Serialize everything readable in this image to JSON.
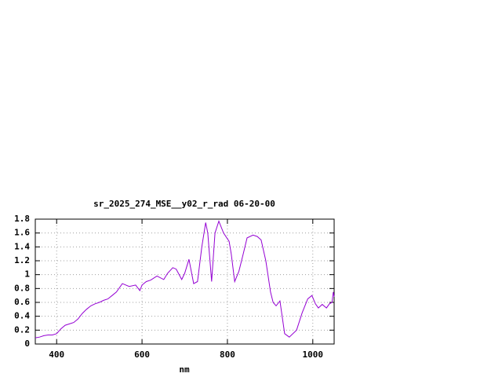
{
  "chart_data": {
    "type": "line",
    "title": "sr_2025_274_MSE__y02_r_rad 06-20-00",
    "x_label": "nm",
    "xlim": [
      350,
      1050
    ],
    "xticks": [
      400,
      600,
      800,
      1000
    ],
    "ylim": [
      0,
      1.8
    ],
    "yticks": [
      0,
      0.2,
      0.4,
      0.6,
      0.8,
      1,
      1.2,
      1.4,
      1.6,
      1.8
    ],
    "grid": true,
    "series": [
      {
        "color": "#9400d3",
        "x": [
          350,
          360,
          370,
          380,
          390,
          400,
          410,
          420,
          430,
          440,
          450,
          460,
          470,
          480,
          490,
          500,
          510,
          520,
          530,
          540,
          554,
          570,
          585,
          595,
          600,
          610,
          620,
          635,
          651,
          660,
          672,
          680,
          693,
          700,
          710,
          721,
          730,
          740,
          749,
          754,
          763,
          771,
          780,
          791,
          804,
          809,
          817,
          827,
          837,
          846,
          860,
          870,
          879,
          890,
          901,
          907,
          914,
          923,
          934,
          945,
          962,
          975,
          988,
          998,
          1006,
          1013,
          1022,
          1032,
          1039,
          1045,
          1048,
          1050
        ],
        "values": [
          0.09,
          0.1,
          0.12,
          0.13,
          0.13,
          0.15,
          0.22,
          0.27,
          0.29,
          0.31,
          0.36,
          0.44,
          0.5,
          0.55,
          0.58,
          0.6,
          0.63,
          0.65,
          0.7,
          0.75,
          0.87,
          0.83,
          0.85,
          0.77,
          0.85,
          0.9,
          0.92,
          0.98,
          0.93,
          1.02,
          1.1,
          1.08,
          0.93,
          1.02,
          1.22,
          0.87,
          0.9,
          1.4,
          1.75,
          1.6,
          0.9,
          1.6,
          1.77,
          1.6,
          1.48,
          1.3,
          0.9,
          1.05,
          1.3,
          1.53,
          1.57,
          1.55,
          1.5,
          1.2,
          0.75,
          0.6,
          0.55,
          0.62,
          0.15,
          0.1,
          0.2,
          0.45,
          0.65,
          0.7,
          0.58,
          0.52,
          0.57,
          0.52,
          0.58,
          0.6,
          0.75,
          0.68
        ]
      }
    ]
  }
}
